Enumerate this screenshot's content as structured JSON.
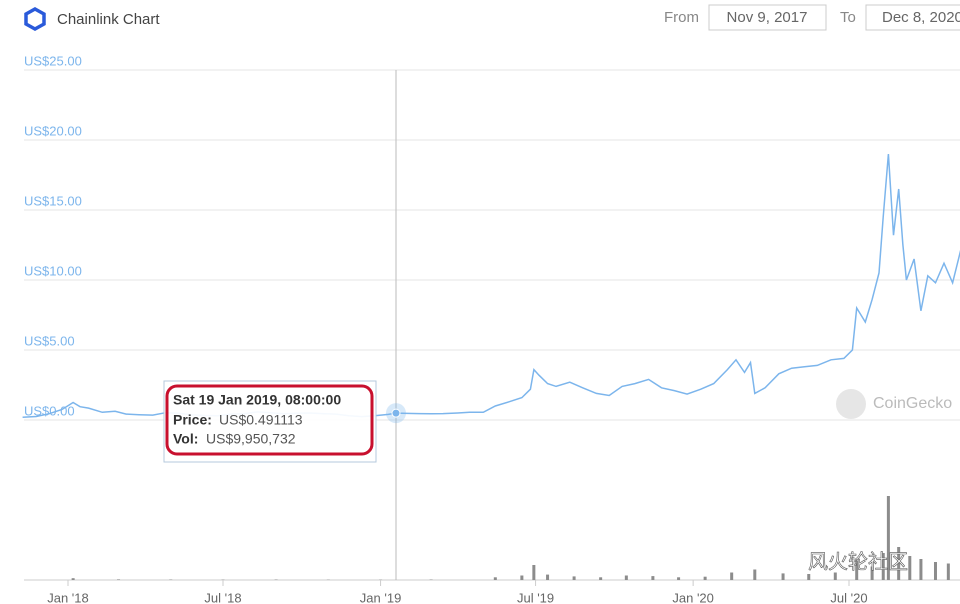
{
  "chart_data": {
    "type": "line",
    "title": "Chainlink Chart",
    "range_from_label": "From",
    "range_from": "Nov 9, 2017",
    "range_to_label": "To",
    "range_to": "Dec 8, 2020",
    "color": "#7cb5ec",
    "grid": true,
    "ylim": [
      0,
      25
    ],
    "yticks": [
      {
        "value": 0,
        "label": "US$0.00"
      },
      {
        "value": 5,
        "label": "US$5.00"
      },
      {
        "value": 10,
        "label": "US$10.00"
      },
      {
        "value": 15,
        "label": "US$15.00"
      },
      {
        "value": 20,
        "label": "US$20.00"
      },
      {
        "value": 25,
        "label": "US$25.00"
      }
    ],
    "xticks": [
      {
        "value": "2018-01-01",
        "label": "Jan '18"
      },
      {
        "value": "2018-07-01",
        "label": "Jul '18"
      },
      {
        "value": "2019-01-01",
        "label": "Jan '19"
      },
      {
        "value": "2019-07-01",
        "label": "Jul '19"
      },
      {
        "value": "2020-01-01",
        "label": "Jan '20"
      },
      {
        "value": "2020-07-01",
        "label": "Jul '20"
      }
    ],
    "x": [
      "2017-11-09",
      "2017-11-25",
      "2017-12-10",
      "2017-12-25",
      "2018-01-07",
      "2018-01-15",
      "2018-01-25",
      "2018-02-10",
      "2018-02-25",
      "2018-03-10",
      "2018-03-25",
      "2018-04-10",
      "2018-04-25",
      "2018-05-10",
      "2018-05-25",
      "2018-06-10",
      "2018-06-25",
      "2018-07-10",
      "2018-07-25",
      "2018-08-10",
      "2018-08-25",
      "2018-09-10",
      "2018-09-25",
      "2018-10-10",
      "2018-10-25",
      "2018-11-10",
      "2018-11-25",
      "2018-12-10",
      "2018-12-25",
      "2019-01-10",
      "2019-01-19",
      "2019-02-01",
      "2019-02-15",
      "2019-03-01",
      "2019-03-15",
      "2019-04-01",
      "2019-04-15",
      "2019-05-01",
      "2019-05-15",
      "2019-05-31",
      "2019-06-15",
      "2019-06-25",
      "2019-06-29",
      "2019-07-05",
      "2019-07-15",
      "2019-07-25",
      "2019-08-10",
      "2019-08-25",
      "2019-09-10",
      "2019-09-25",
      "2019-10-10",
      "2019-10-25",
      "2019-11-10",
      "2019-11-25",
      "2019-12-10",
      "2019-12-25",
      "2020-01-10",
      "2020-01-25",
      "2020-02-10",
      "2020-02-20",
      "2020-03-01",
      "2020-03-08",
      "2020-03-13",
      "2020-03-25",
      "2020-04-10",
      "2020-04-25",
      "2020-05-10",
      "2020-05-25",
      "2020-06-10",
      "2020-06-25",
      "2020-07-05",
      "2020-07-10",
      "2020-07-20",
      "2020-07-28",
      "2020-08-05",
      "2020-08-10",
      "2020-08-16",
      "2020-08-22",
      "2020-08-28",
      "2020-09-02",
      "2020-09-06",
      "2020-09-15",
      "2020-09-23",
      "2020-10-01",
      "2020-10-10",
      "2020-10-20",
      "2020-10-30",
      "2020-11-10",
      "2020-11-20",
      "2020-11-30",
      "2020-12-08"
    ],
    "values": [
      0.19,
      0.25,
      0.45,
      0.75,
      1.25,
      0.95,
      0.85,
      0.55,
      0.62,
      0.42,
      0.38,
      0.35,
      0.52,
      0.48,
      0.38,
      0.32,
      0.3,
      0.42,
      0.45,
      0.58,
      0.52,
      0.45,
      0.48,
      0.5,
      0.46,
      0.42,
      0.3,
      0.24,
      0.3,
      0.4,
      0.491113,
      0.47,
      0.46,
      0.44,
      0.46,
      0.5,
      0.55,
      0.55,
      1.0,
      1.3,
      1.6,
      2.2,
      3.6,
      3.2,
      2.6,
      2.4,
      2.7,
      2.3,
      1.9,
      1.75,
      2.4,
      2.6,
      2.9,
      2.3,
      2.1,
      1.85,
      2.2,
      2.6,
      3.6,
      4.3,
      3.4,
      4.1,
      1.9,
      2.3,
      3.3,
      3.7,
      3.8,
      3.9,
      4.3,
      4.4,
      5.0,
      8.0,
      7.0,
      8.6,
      10.5,
      14.5,
      19.0,
      13.2,
      16.5,
      12.5,
      10.0,
      11.5,
      7.8,
      10.3,
      9.8,
      11.2,
      9.8,
      12.5,
      13.0,
      13.5,
      12.8
    ],
    "volume": {
      "color": "#8c8c8c",
      "y2lim": [
        0,
        4000000000
      ],
      "x": [
        "2018-01-07",
        "2018-03-01",
        "2018-05-01",
        "2018-07-01",
        "2018-09-01",
        "2018-11-01",
        "2019-01-01",
        "2019-03-01",
        "2019-05-15",
        "2019-06-15",
        "2019-06-29",
        "2019-07-15",
        "2019-08-15",
        "2019-09-15",
        "2019-10-15",
        "2019-11-15",
        "2019-12-15",
        "2020-01-15",
        "2020-02-15",
        "2020-03-13",
        "2020-04-15",
        "2020-05-15",
        "2020-06-15",
        "2020-07-10",
        "2020-07-28",
        "2020-08-10",
        "2020-08-16",
        "2020-08-28",
        "2020-09-10",
        "2020-09-23",
        "2020-10-10",
        "2020-10-25",
        "2020-11-10",
        "2020-11-25",
        "2020-12-05"
      ],
      "values": [
        60000000,
        20000000,
        15000000,
        12000000,
        15000000,
        10000000,
        9950732,
        15000000,
        90000000,
        150000000,
        500000000,
        180000000,
        120000000,
        90000000,
        150000000,
        130000000,
        90000000,
        110000000,
        250000000,
        350000000,
        220000000,
        200000000,
        250000000,
        650000000,
        450000000,
        900000000,
        2800000000,
        1100000000,
        800000000,
        700000000,
        600000000,
        550000000,
        650000000,
        700000000,
        600000000
      ]
    },
    "tooltip": {
      "date": "Sat 19 Jan 2019, 08:00:00",
      "price_label": "Price:",
      "price": "US$0.491113",
      "vol_label": "Vol:",
      "vol": "US$9,950,732"
    },
    "watermark": "CoinGecko",
    "wechat_watermark": "风火轮社区"
  }
}
